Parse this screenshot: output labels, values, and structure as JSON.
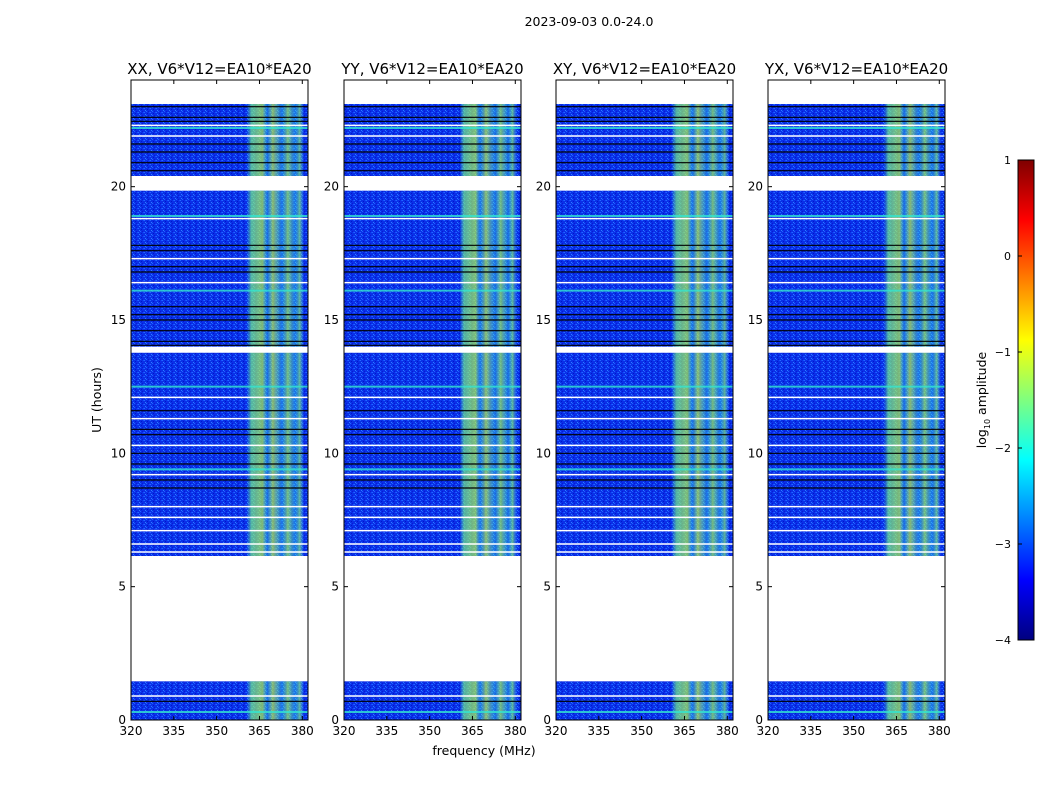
{
  "suptitle": "2023-09-03 0.0-24.0",
  "colorbar": {
    "label_main": "log",
    "label_sub": "10",
    "label_tail": " amplitude",
    "ticks": [
      "1",
      "0",
      "−1",
      "−2",
      "−3",
      "−4"
    ],
    "range": [
      -4,
      1
    ],
    "colors": [
      "#00007f",
      "#0000ff",
      "#007fff",
      "#00ffff",
      "#7fff7f",
      "#ffff00",
      "#ff7f00",
      "#ff0000",
      "#7f0000"
    ]
  },
  "chart_data": [
    {
      "type": "heatmap",
      "title": "XX, V6*V12=EA10*EA20",
      "xlabel": "",
      "ylabel": "UT (hours)",
      "xlim": [
        320,
        382
      ],
      "ylim": [
        0,
        24
      ],
      "xticks": [
        "320",
        "335",
        "350",
        "365",
        "380"
      ],
      "yticks": [
        "0",
        "5",
        "10",
        "15",
        "20"
      ],
      "rfi_band_mhz": [
        360.5,
        380.5
      ],
      "data_blocks_ut": [
        [
          0.0,
          1.45
        ],
        [
          6.15,
          13.8
        ],
        [
          14.0,
          19.85
        ],
        [
          20.4,
          23.1
        ]
      ]
    },
    {
      "type": "heatmap",
      "title": "YY, V6*V12=EA10*EA20",
      "xlabel": "frequency (MHz)",
      "ylabel": "",
      "xlim": [
        320,
        382
      ],
      "ylim": [
        0,
        24
      ],
      "xticks": [
        "320",
        "335",
        "350",
        "365",
        "380"
      ],
      "yticks": [
        "0",
        "5",
        "10",
        "15",
        "20"
      ],
      "rfi_band_mhz": [
        360.5,
        380.5
      ],
      "data_blocks_ut": [
        [
          0.0,
          1.45
        ],
        [
          6.15,
          13.8
        ],
        [
          14.0,
          19.85
        ],
        [
          20.4,
          23.1
        ]
      ]
    },
    {
      "type": "heatmap",
      "title": "XY, V6*V12=EA10*EA20",
      "xlabel": "",
      "ylabel": "",
      "xlim": [
        320,
        382
      ],
      "ylim": [
        0,
        24
      ],
      "xticks": [
        "320",
        "335",
        "350",
        "365",
        "380"
      ],
      "yticks": [
        "0",
        "5",
        "10",
        "15",
        "20"
      ],
      "rfi_band_mhz": [
        360.5,
        380.5
      ],
      "data_blocks_ut": [
        [
          0.0,
          1.45
        ],
        [
          6.15,
          13.8
        ],
        [
          14.0,
          19.85
        ],
        [
          20.4,
          23.1
        ]
      ]
    },
    {
      "type": "heatmap",
      "title": "YX, V6*V12=EA10*EA20",
      "xlabel": "",
      "ylabel": "",
      "xlim": [
        320,
        382
      ],
      "ylim": [
        0,
        24
      ],
      "xticks": [
        "320",
        "335",
        "350",
        "365",
        "380"
      ],
      "yticks": [
        "0",
        "5",
        "10",
        "15",
        "20"
      ],
      "rfi_band_mhz": [
        360.5,
        380.5
      ],
      "data_blocks_ut": [
        [
          0.0,
          1.45
        ],
        [
          6.15,
          13.8
        ],
        [
          14.0,
          19.85
        ],
        [
          20.4,
          23.1
        ]
      ]
    }
  ]
}
